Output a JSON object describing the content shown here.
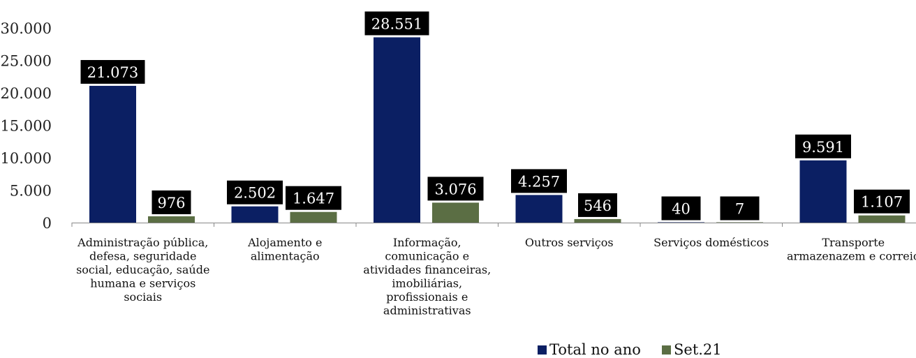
{
  "chart_data": {
    "type": "bar",
    "title": "",
    "xlabel": "",
    "ylabel": "",
    "ylim": [
      0,
      30000
    ],
    "y_ticks": [
      0,
      5000,
      10000,
      15000,
      20000,
      25000,
      30000
    ],
    "y_tick_labels": [
      "0",
      "5.000",
      "10.000",
      "15.000",
      "20.000",
      "25.000",
      "30.000"
    ],
    "categories": [
      "Administração pública, defesa, seguridade social, educação, saúde humana e serviços sociais",
      "Alojamento e alimentação",
      "Informação, comunicação e atividades financeiras, imobiliárias, profissionais e administrativas",
      "Outros serviços",
      "Serviços domésticos",
      "Transporte armazenazem e correio"
    ],
    "category_lines": [
      [
        "Administração pública,",
        "defesa, seguridade",
        "social, educação, saúde",
        "humana e serviços",
        "sociais"
      ],
      [
        "Alojamento e",
        "alimentação"
      ],
      [
        "Informação,",
        "comunicação e",
        "atividades financeiras,",
        "imobiliárias,",
        "profissionais e",
        "administrativas"
      ],
      [
        "Outros serviços"
      ],
      [
        "Serviços domésticos"
      ],
      [
        "Transporte",
        "armazenazem e correio"
      ]
    ],
    "series": [
      {
        "name": "Total no ano",
        "color": "#0b1f63",
        "values": [
          21073,
          2502,
          28551,
          4257,
          40,
          9591
        ],
        "labels": [
          "21.073",
          "2.502",
          "28.551",
          "4.257",
          "40",
          "9.591"
        ]
      },
      {
        "name": "Set.21",
        "color": "#5b6e44",
        "values": [
          976,
          1647,
          3076,
          546,
          7,
          1107
        ],
        "labels": [
          "976",
          "1.647",
          "3.076",
          "546",
          "7",
          "1.107"
        ]
      }
    ],
    "grid": false,
    "legend_position": "bottom-right"
  }
}
